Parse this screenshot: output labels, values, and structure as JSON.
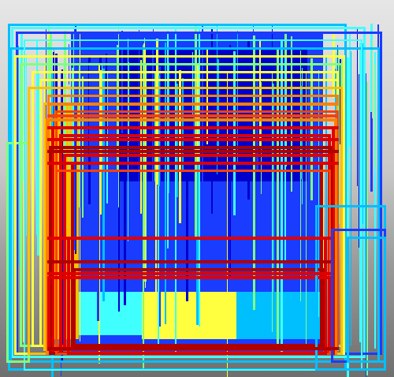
{
  "image": {
    "description_kind": "heatmap-colored-detection-boxes-overlay",
    "colormap": [
      "#0000cc",
      "#1a3cff",
      "#00bfff",
      "#40ffff",
      "#80ff80",
      "#ffff40",
      "#ffbf00",
      "#ff8000",
      "#ff4000",
      "#e00000",
      "#b00000"
    ]
  }
}
